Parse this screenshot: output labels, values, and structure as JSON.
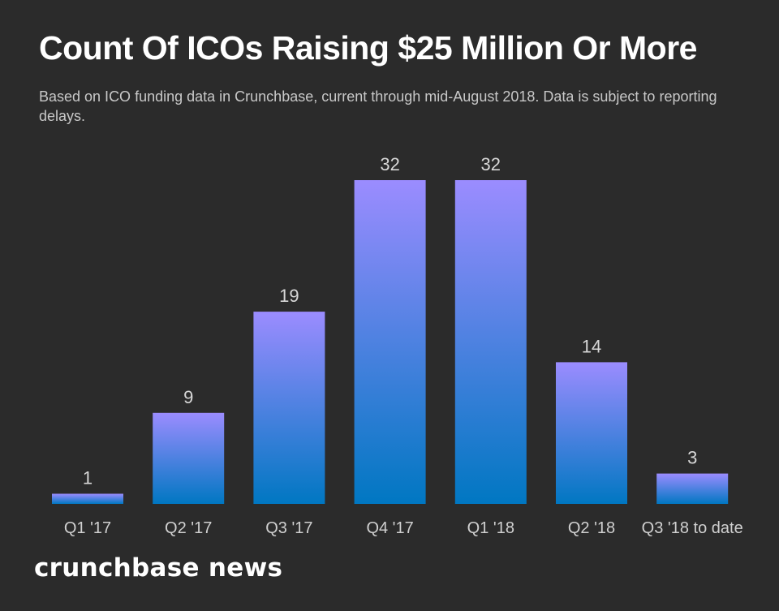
{
  "header": {
    "title": "Count Of ICOs Raising $25 Million Or More",
    "subtitle": "Based on ICO funding data in Crunchbase, current through mid-August 2018. Data is subject to reporting delays."
  },
  "brand": {
    "logo_text": "crunchbase news"
  },
  "colors": {
    "background": "#2b2b2b",
    "bar_top": "#9b8cff",
    "bar_bottom": "#0077c2"
  },
  "chart_data": {
    "type": "bar",
    "title": "Count Of ICOs Raising $25 Million Or More",
    "xlabel": "",
    "ylabel": "",
    "categories": [
      "Q1 '17",
      "Q2 '17",
      "Q3 '17",
      "Q4 '17",
      "Q1 '18",
      "Q2 '18",
      "Q3 '18 to date"
    ],
    "values": [
      1,
      9,
      19,
      32,
      32,
      14,
      3
    ],
    "ylim": [
      0,
      32
    ],
    "grid": false,
    "legend": "none",
    "data_labels": true
  }
}
